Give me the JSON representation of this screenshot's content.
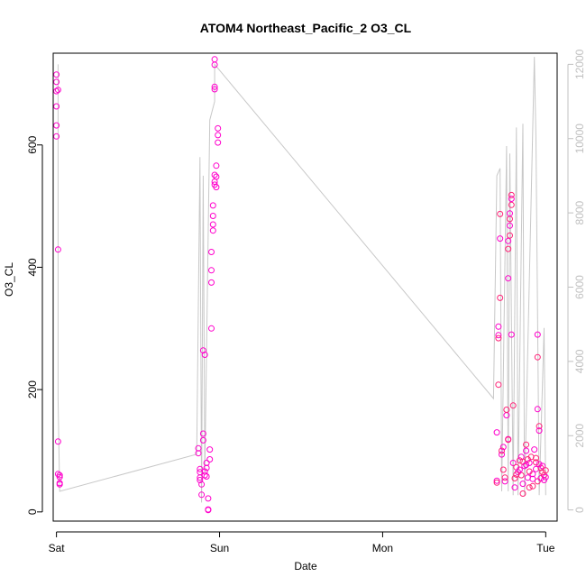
{
  "chart_data": {
    "type": "scatter",
    "title": "ATOM4 Northeast_Pacific_2 O3_CL",
    "xlabel": "Date",
    "ylabel": "O3_CL",
    "x_ticks": [
      "Sat",
      "Sun",
      "Mon",
      "Tue"
    ],
    "x_tick_days": [
      0,
      1,
      2,
      3
    ],
    "xlim": [
      -0.02,
      3.07
    ],
    "ylim": [
      -15,
      750
    ],
    "y_ticks": [
      0,
      200,
      400,
      600
    ],
    "y2_ticks": [
      0,
      2000,
      4000,
      6000,
      8000,
      10000,
      12000
    ],
    "y2lim": [
      -300,
      12300
    ],
    "colors": {
      "points": "#ff00cc",
      "points_alt": "#ff2277",
      "secondary_line": "#c8c8c8",
      "right_axis": "#c0c0c0",
      "axis": "#000000"
    },
    "grid": false,
    "series": [
      {
        "values": [
          [
            0.0,
            715
          ],
          [
            0.0,
            703
          ],
          [
            0.01,
            690
          ],
          [
            0.0,
            688
          ],
          [
            0.0,
            663
          ],
          [
            0.0,
            632
          ],
          [
            0.0,
            614
          ],
          [
            0.01,
            429
          ],
          [
            0.01,
            115
          ],
          [
            0.01,
            62
          ],
          [
            0.02,
            60
          ],
          [
            0.02,
            57
          ],
          [
            0.02,
            47
          ],
          [
            0.02,
            45
          ],
          [
            0.87,
            104
          ],
          [
            0.87,
            96
          ],
          [
            0.88,
            70
          ],
          [
            0.88,
            65
          ],
          [
            0.88,
            56
          ],
          [
            0.88,
            52
          ],
          [
            0.89,
            45
          ],
          [
            0.89,
            28
          ],
          [
            0.9,
            128
          ],
          [
            0.9,
            117
          ],
          [
            0.9,
            264
          ],
          [
            0.91,
            257
          ],
          [
            0.91,
            66
          ],
          [
            0.91,
            60
          ],
          [
            0.92,
            80
          ],
          [
            0.92,
            72
          ],
          [
            0.92,
            58
          ],
          [
            0.93,
            4
          ],
          [
            0.93,
            3
          ],
          [
            0.93,
            22
          ],
          [
            0.94,
            102
          ],
          [
            0.94,
            86
          ],
          [
            0.95,
            300
          ],
          [
            0.95,
            375
          ],
          [
            0.95,
            395
          ],
          [
            0.95,
            425
          ],
          [
            0.96,
            460
          ],
          [
            0.96,
            470
          ],
          [
            0.96,
            484
          ],
          [
            0.96,
            501
          ],
          [
            0.97,
            540
          ],
          [
            0.97,
            535
          ],
          [
            0.97,
            551
          ],
          [
            0.98,
            566
          ],
          [
            0.98,
            548
          ],
          [
            0.98,
            531
          ],
          [
            0.99,
            604
          ],
          [
            0.99,
            616
          ],
          [
            0.99,
            627
          ],
          [
            0.97,
            695
          ],
          [
            0.97,
            691
          ],
          [
            0.97,
            740
          ],
          [
            0.97,
            731
          ],
          [
            2.7,
            51
          ],
          [
            2.7,
            48
          ],
          [
            2.7,
            130
          ],
          [
            2.71,
            208
          ],
          [
            2.71,
            289
          ],
          [
            2.71,
            284
          ],
          [
            2.71,
            303
          ],
          [
            2.72,
            350
          ],
          [
            2.72,
            447
          ],
          [
            2.72,
            487
          ],
          [
            2.73,
            94
          ],
          [
            2.73,
            100
          ],
          [
            2.74,
            106
          ],
          [
            2.74,
            69
          ],
          [
            2.75,
            50
          ],
          [
            2.75,
            56
          ],
          [
            2.76,
            158
          ],
          [
            2.76,
            167
          ],
          [
            2.77,
            119
          ],
          [
            2.77,
            118
          ],
          [
            2.77,
            382
          ],
          [
            2.77,
            430
          ],
          [
            2.77,
            443
          ],
          [
            2.78,
            452
          ],
          [
            2.78,
            468
          ],
          [
            2.78,
            479
          ],
          [
            2.78,
            488
          ],
          [
            2.79,
            502
          ],
          [
            2.79,
            512
          ],
          [
            2.79,
            518
          ],
          [
            2.79,
            290
          ],
          [
            2.8,
            174
          ],
          [
            2.8,
            80
          ],
          [
            2.81,
            55
          ],
          [
            2.81,
            40
          ],
          [
            2.82,
            73
          ],
          [
            2.83,
            65
          ],
          [
            2.84,
            84
          ],
          [
            2.85,
            90
          ],
          [
            2.85,
            60
          ],
          [
            2.86,
            46
          ],
          [
            2.86,
            30
          ],
          [
            2.87,
            75
          ],
          [
            2.88,
            110
          ],
          [
            2.88,
            100
          ],
          [
            2.89,
            86
          ],
          [
            2.89,
            56
          ],
          [
            2.9,
            40
          ],
          [
            2.9,
            80
          ],
          [
            2.91,
            90
          ],
          [
            2.92,
            62
          ],
          [
            2.92,
            42
          ],
          [
            2.93,
            102
          ],
          [
            2.94,
            88
          ],
          [
            2.94,
            70
          ],
          [
            2.95,
            50
          ],
          [
            2.95,
            290
          ],
          [
            2.95,
            253
          ],
          [
            2.95,
            168
          ],
          [
            2.96,
            140
          ],
          [
            2.96,
            133
          ],
          [
            2.97,
            72
          ],
          [
            2.97,
            55
          ],
          [
            2.98,
            65
          ],
          [
            2.98,
            75
          ],
          [
            2.99,
            60
          ],
          [
            2.99,
            52
          ],
          [
            3.0,
            68
          ],
          [
            3.0,
            57
          ],
          [
            2.82,
            61
          ],
          [
            2.84,
            69
          ],
          [
            2.86,
            82
          ],
          [
            2.88,
            77
          ],
          [
            2.9,
            66
          ],
          [
            2.92,
            54
          ],
          [
            2.94,
            81
          ],
          [
            2.96,
            78
          ]
        ]
      },
      {
        "axis": "right",
        "type": "line",
        "values": [
          [
            0.01,
            12000
          ],
          [
            0.01,
            3000
          ],
          [
            0.02,
            500
          ],
          [
            0.86,
            1500
          ],
          [
            0.88,
            9500
          ],
          [
            0.89,
            200
          ],
          [
            0.9,
            9000
          ],
          [
            0.91,
            1000
          ],
          [
            0.94,
            10500
          ],
          [
            0.97,
            11000
          ],
          [
            0.97,
            12000
          ],
          [
            2.68,
            3000
          ],
          [
            2.7,
            9000
          ],
          [
            2.72,
            9200
          ],
          [
            2.73,
            500
          ],
          [
            2.76,
            9800
          ],
          [
            2.77,
            500
          ],
          [
            2.78,
            9600
          ],
          [
            2.8,
            400
          ],
          [
            2.82,
            10300
          ],
          [
            2.83,
            400
          ],
          [
            2.86,
            10400
          ],
          [
            2.87,
            400
          ],
          [
            2.93,
            12200
          ],
          [
            2.94,
            10000
          ],
          [
            2.96,
            400
          ],
          [
            2.99,
            4900
          ],
          [
            3.0,
            400
          ]
        ]
      }
    ]
  }
}
